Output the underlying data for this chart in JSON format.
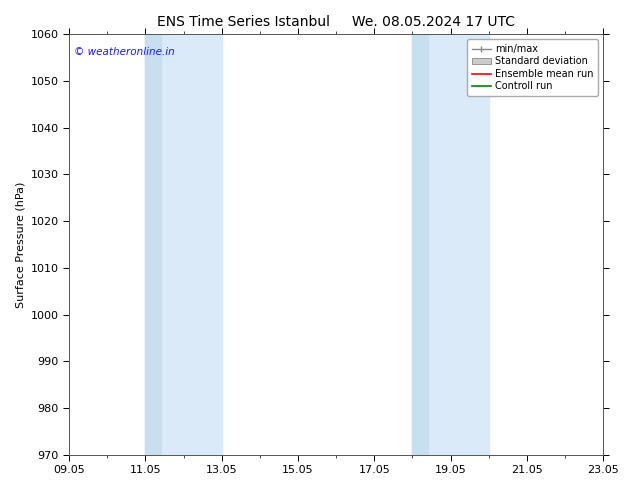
{
  "title_left": "ENS Time Series Istanbul",
  "title_right": "We. 08.05.2024 17 UTC",
  "ylabel": "Surface Pressure (hPa)",
  "ylim": [
    970,
    1060
  ],
  "yticks": [
    970,
    980,
    990,
    1000,
    1010,
    1020,
    1030,
    1040,
    1050,
    1060
  ],
  "xtick_labels": [
    "09.05",
    "11.05",
    "13.05",
    "15.05",
    "17.05",
    "19.05",
    "21.05",
    "23.05"
  ],
  "xtick_values": [
    0,
    2,
    4,
    6,
    8,
    10,
    12,
    14
  ],
  "xlim": [
    0,
    14
  ],
  "shaded_bands": [
    [
      2,
      2.5,
      "#cce0f0"
    ],
    [
      2.5,
      4,
      "#ddeefa"
    ],
    [
      10,
      10.5,
      "#cce0f0"
    ],
    [
      10.5,
      12,
      "#ddeefa"
    ]
  ],
  "watermark": "© weatheronline.in",
  "watermark_color": "#1a1aff",
  "legend_entries": [
    "min/max",
    "Standard deviation",
    "Ensemble mean run",
    "Controll run"
  ],
  "legend_colors_line": [
    "#aaaaaa",
    "#bbbbbb",
    "#ff0000",
    "#008000"
  ],
  "legend_colors_fill": [
    "#ffffff",
    "#cccccc",
    "#ff0000",
    "#008000"
  ],
  "bg_color": "#ffffff",
  "plot_bg_color": "#ffffff",
  "border_color": "#000000",
  "title_fontsize": 10,
  "axis_label_fontsize": 8,
  "tick_fontsize": 8,
  "watermark_fontsize": 7.5
}
